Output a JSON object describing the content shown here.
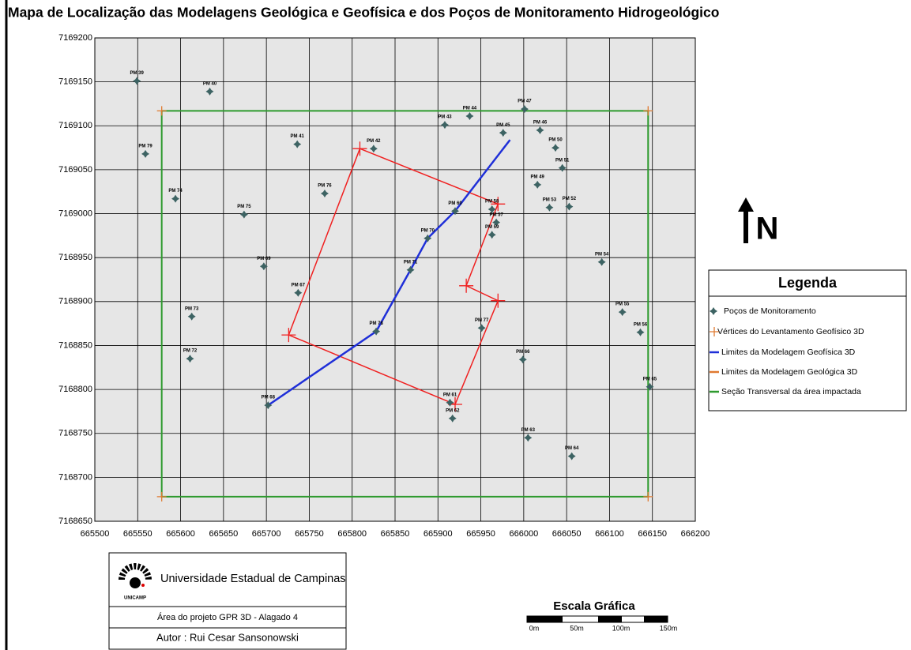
{
  "title": "Mapa de Localização das Modelagens Geológica e Geofísica e dos Poços de Monitoramento Hidrogeológico",
  "map": {
    "xlim": [
      665500,
      666200
    ],
    "ylim": [
      7168650,
      7169200
    ],
    "xticks": [
      665500,
      665550,
      665600,
      665650,
      665700,
      665750,
      665800,
      665850,
      665900,
      665950,
      666000,
      666050,
      666100,
      666150,
      666200
    ],
    "yticks": [
      7168650,
      7168700,
      7168750,
      7168800,
      7168850,
      7168900,
      7168950,
      7169000,
      7169050,
      7169100,
      7169150,
      7169200
    ],
    "grid": true,
    "wells": [
      {
        "label": "PM 39",
        "x": 665549,
        "y": 7169151
      },
      {
        "label": "PM 40",
        "x": 665634,
        "y": 7169139
      },
      {
        "label": "PM 79",
        "x": 665559,
        "y": 7169068
      },
      {
        "label": "PM 41",
        "x": 665736,
        "y": 7169079
      },
      {
        "label": "PM 42",
        "x": 665825,
        "y": 7169074
      },
      {
        "label": "PM 43",
        "x": 665908,
        "y": 7169101
      },
      {
        "label": "PM 44",
        "x": 665937,
        "y": 7169111
      },
      {
        "label": "PM 47",
        "x": 666001,
        "y": 7169119
      },
      {
        "label": "PM 45",
        "x": 665976,
        "y": 7169092
      },
      {
        "label": "PM 46",
        "x": 666019,
        "y": 7169095
      },
      {
        "label": "PM 50",
        "x": 666037,
        "y": 7169075
      },
      {
        "label": "PM 51",
        "x": 666045,
        "y": 7169052
      },
      {
        "label": "PM 49",
        "x": 666016,
        "y": 7169033
      },
      {
        "label": "PM 53",
        "x": 666030,
        "y": 7169007
      },
      {
        "label": "PM 52",
        "x": 666053,
        "y": 7169008
      },
      {
        "label": "PM 58",
        "x": 665963,
        "y": 7169005
      },
      {
        "label": "PM 57",
        "x": 665968,
        "y": 7168990
      },
      {
        "label": "PM 59",
        "x": 665963,
        "y": 7168976
      },
      {
        "label": "PM 60",
        "x": 665920,
        "y": 7169003
      },
      {
        "label": "PM 74",
        "x": 665594,
        "y": 7169017
      },
      {
        "label": "PM 76",
        "x": 665768,
        "y": 7169023
      },
      {
        "label": "PM 75",
        "x": 665674,
        "y": 7168999
      },
      {
        "label": "PM 70",
        "x": 665888,
        "y": 7168972
      },
      {
        "label": "PM 54",
        "x": 666091,
        "y": 7168945
      },
      {
        "label": "PM 69",
        "x": 665697,
        "y": 7168940
      },
      {
        "label": "PM 71",
        "x": 665868,
        "y": 7168936
      },
      {
        "label": "PM 67",
        "x": 665737,
        "y": 7168910
      },
      {
        "label": "PM 73",
        "x": 665613,
        "y": 7168883
      },
      {
        "label": "PM 55",
        "x": 666115,
        "y": 7168888
      },
      {
        "label": "PM 56",
        "x": 666136,
        "y": 7168865
      },
      {
        "label": "PM 77",
        "x": 665951,
        "y": 7168870
      },
      {
        "label": "PM 78",
        "x": 665828,
        "y": 7168866
      },
      {
        "label": "PM 72",
        "x": 665611,
        "y": 7168835
      },
      {
        "label": "PM 66",
        "x": 665999,
        "y": 7168834
      },
      {
        "label": "PM 65",
        "x": 666147,
        "y": 7168803
      },
      {
        "label": "PM 68",
        "x": 665702,
        "y": 7168782
      },
      {
        "label": "PM 61",
        "x": 665914,
        "y": 7168785
      },
      {
        "label": "PM 62",
        "x": 665917,
        "y": 7168767
      },
      {
        "label": "PM 63",
        "x": 666005,
        "y": 7168745
      },
      {
        "label": "PM 64",
        "x": 666056,
        "y": 7168724
      }
    ],
    "section": {
      "color": "#2e9a2e",
      "x": [
        665578,
        666145,
        666145,
        665578,
        665578
      ],
      "y": [
        7169117,
        7169117,
        7168678,
        7168678,
        7169117
      ]
    },
    "vertices": {
      "color": "#e07a30",
      "x": [
        665578,
        666145,
        666145,
        665578
      ],
      "y": [
        7169117,
        7169117,
        7168678,
        7168678
      ]
    },
    "geophysical": {
      "color": "#1f2fd8",
      "x": [
        665702,
        665828,
        665868,
        665888,
        665920,
        665984
      ],
      "y": [
        7168782,
        7168866,
        7168936,
        7168972,
        7169003,
        7169084
      ]
    },
    "geological": {
      "color": "#f02020",
      "x": [
        665809,
        665970,
        665933,
        665970,
        665920,
        665726,
        665809
      ],
      "y": [
        7169074,
        7169011,
        7168918,
        7168901,
        7168783,
        7168862,
        7169074
      ]
    }
  },
  "north": "N",
  "legend": {
    "title": "Legenda",
    "items": [
      "Poços de Monitoramento",
      "Vértices do Levantamento Geofísico 3D",
      "Limites da Modelagem Geofísica 3D",
      "Limites da Modelagem Geológica 3D",
      "Seção Transversal da área impactada"
    ]
  },
  "footer": {
    "university": "Universidade Estadual de Campinas",
    "logo": "UNICAMP",
    "project": "Área do projeto GPR 3D - Alagado 4",
    "author": "Autor : Rui Cesar Sansonowski"
  },
  "scale": {
    "title": "Escala Gráfica",
    "labels": [
      "0m",
      "50m",
      "100m",
      "150m"
    ]
  }
}
